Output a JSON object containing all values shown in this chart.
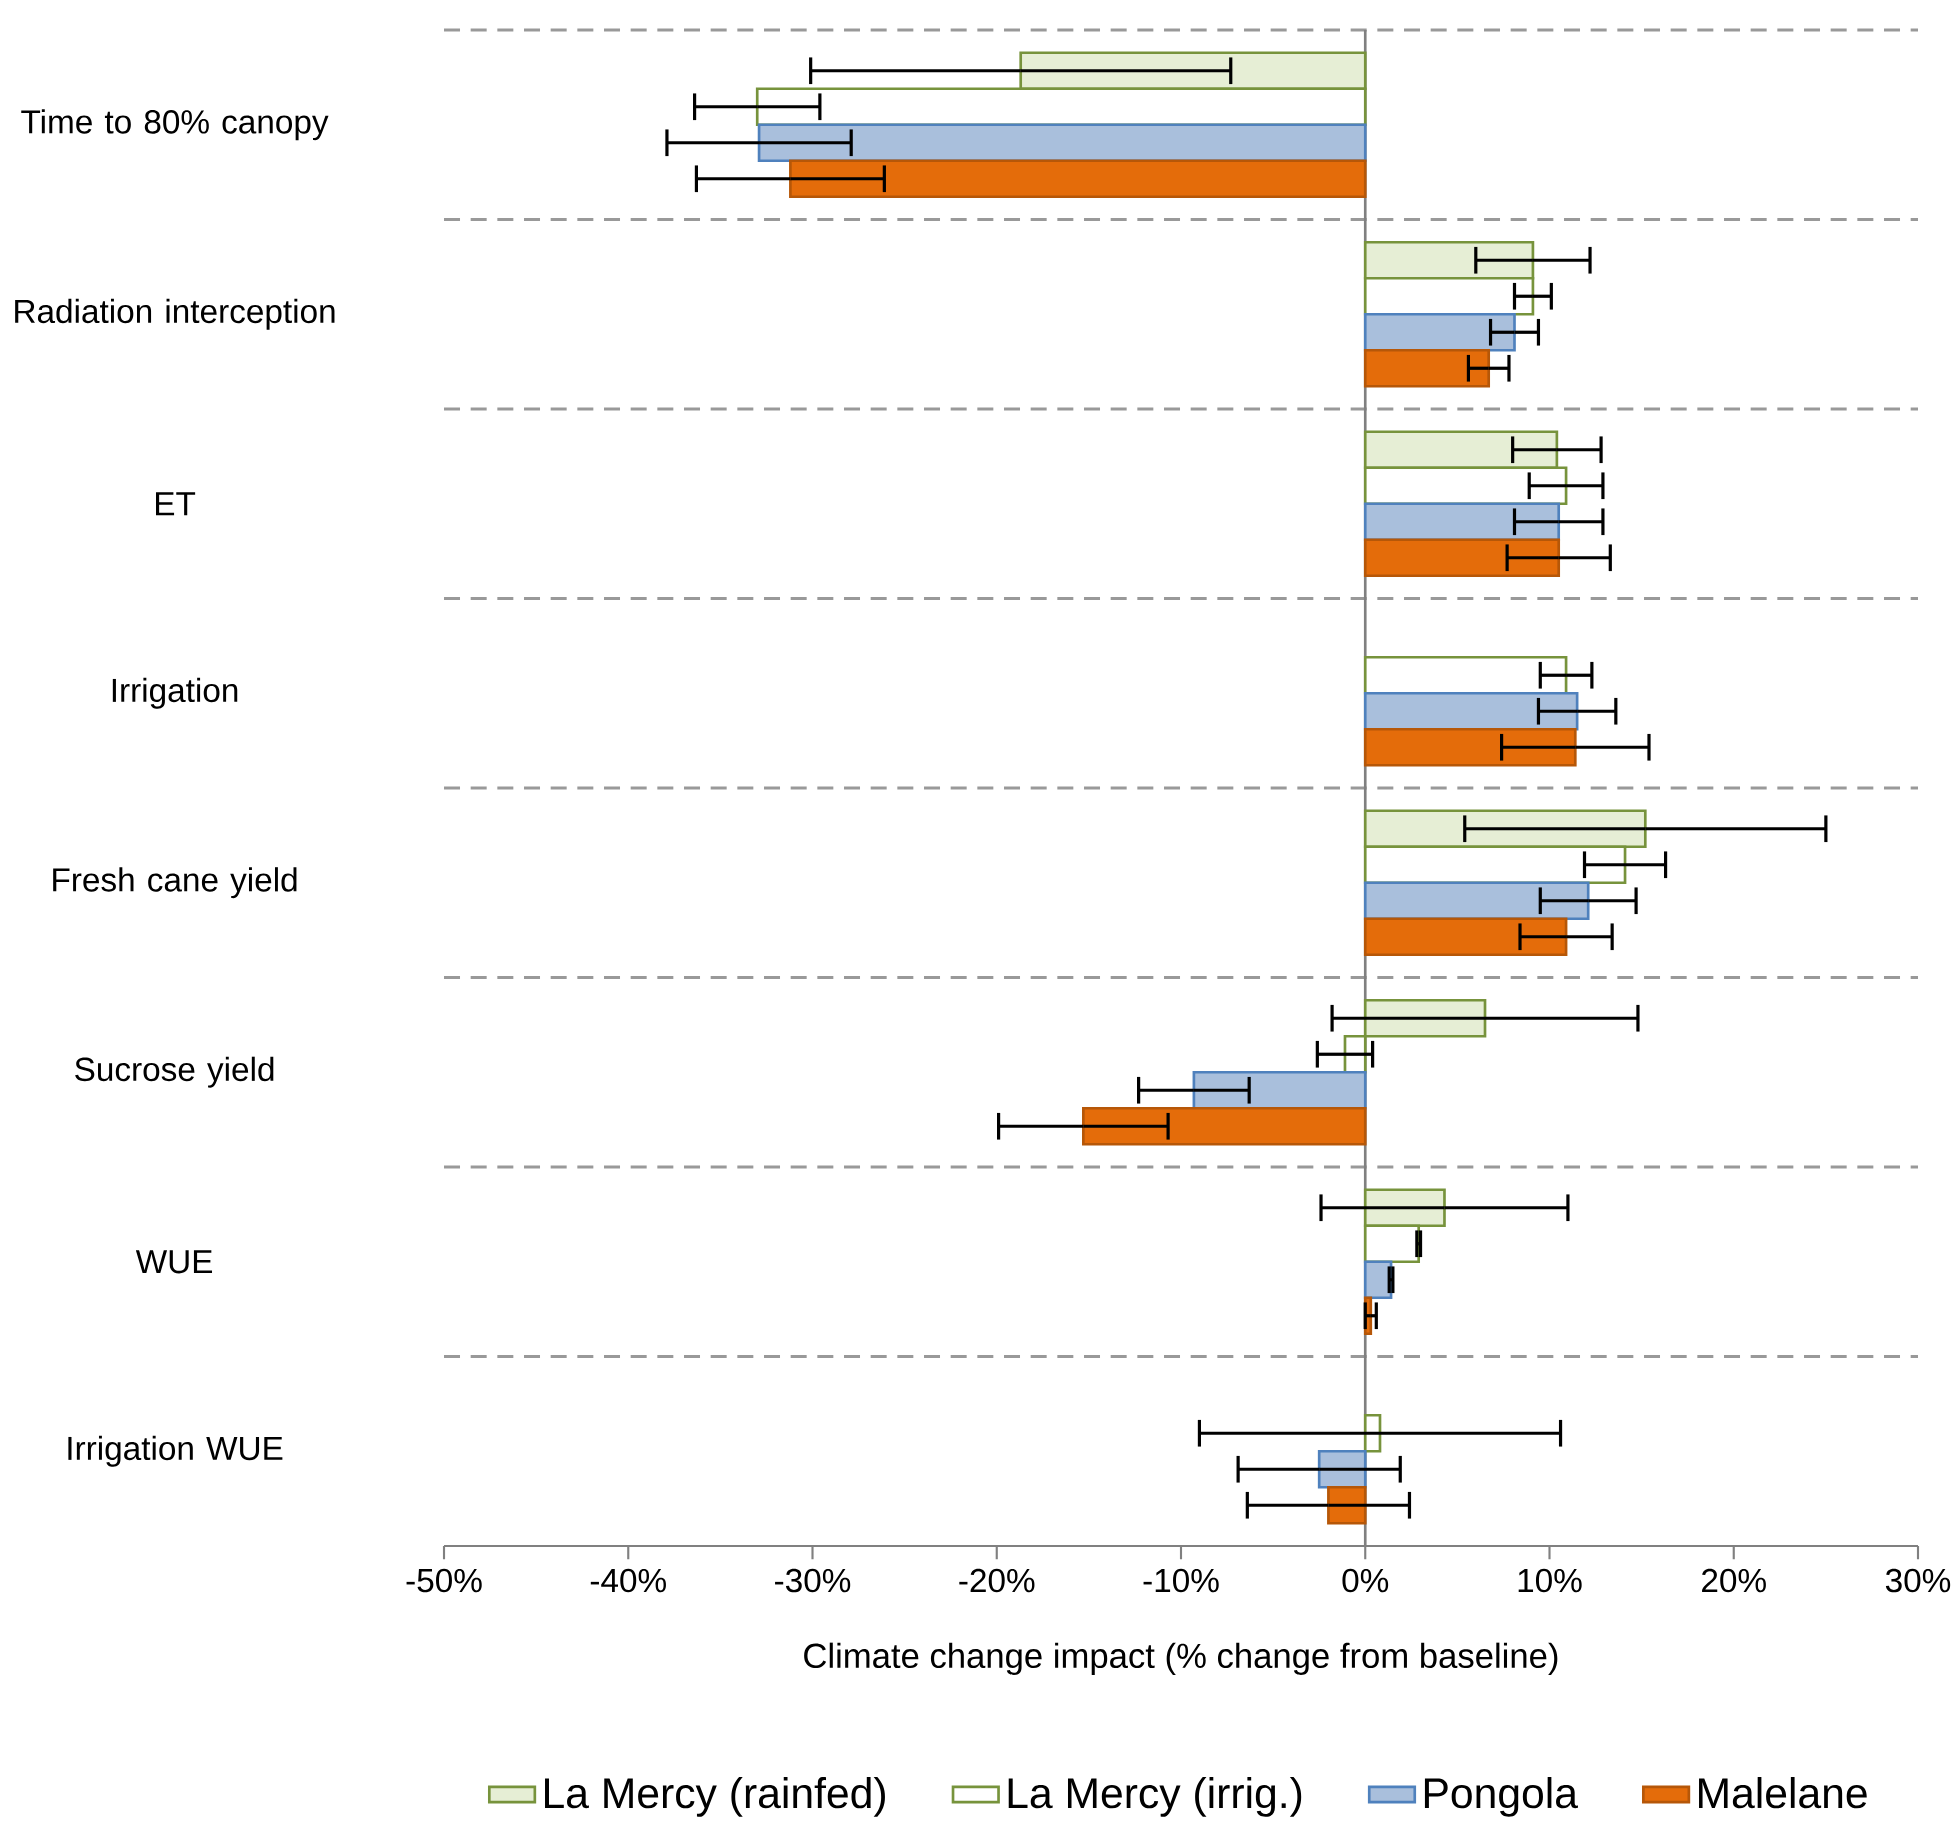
{
  "chart_data": {
    "type": "bar",
    "orientation": "horizontal",
    "xlabel": "Climate change impact (% change from baseline)",
    "categories": [
      "Time to 80% canopy",
      "Radiation interception",
      "ET",
      "Irrigation",
      "Fresh cane yield",
      "Sucrose yield",
      "WUE",
      "Irrigation WUE"
    ],
    "series": [
      {
        "name": "La Mercy (rainfed)",
        "color": "#e6eed5",
        "values": [
          -18.7,
          9.1,
          10.4,
          null,
          15.2,
          6.5,
          4.3,
          null
        ],
        "errors": [
          11.4,
          3.1,
          2.4,
          null,
          9.8,
          8.3,
          6.7,
          null
        ]
      },
      {
        "name": "La Mercy (irrig.)",
        "color": "#ffffff",
        "values": [
          -33.0,
          9.1,
          10.9,
          10.9,
          14.1,
          -1.1,
          2.9,
          0.8
        ],
        "errors": [
          3.4,
          1.0,
          2.0,
          1.4,
          2.2,
          1.5,
          0.1,
          9.8
        ]
      },
      {
        "name": "Pongola",
        "color": "#a9bfdc",
        "values": [
          -32.9,
          8.1,
          10.5,
          11.5,
          12.1,
          -9.3,
          1.4,
          -2.5
        ],
        "errors": [
          5.0,
          1.3,
          2.4,
          2.1,
          2.6,
          3.0,
          0.1,
          4.4
        ]
      },
      {
        "name": "Malelane",
        "color": "#e46c0a",
        "values": [
          -31.2,
          6.7,
          10.5,
          11.4,
          10.9,
          -15.3,
          0.3,
          -2.0
        ],
        "errors": [
          5.1,
          1.1,
          2.8,
          4.0,
          2.5,
          4.6,
          0.3,
          4.4
        ]
      }
    ],
    "xlim": [
      -50,
      30
    ],
    "xticks": [
      {
        "value": -50,
        "label": "-50%"
      },
      {
        "value": -40,
        "label": "-40%"
      },
      {
        "value": -30,
        "label": "-30%"
      },
      {
        "value": -20,
        "label": "-20%"
      },
      {
        "value": -10,
        "label": "-10%"
      },
      {
        "value": 0,
        "label": "0%"
      },
      {
        "value": 10,
        "label": "10%"
      },
      {
        "value": 20,
        "label": "20%"
      },
      {
        "value": 30,
        "label": "30%"
      }
    ],
    "grid": "y",
    "legend": "bottom"
  }
}
